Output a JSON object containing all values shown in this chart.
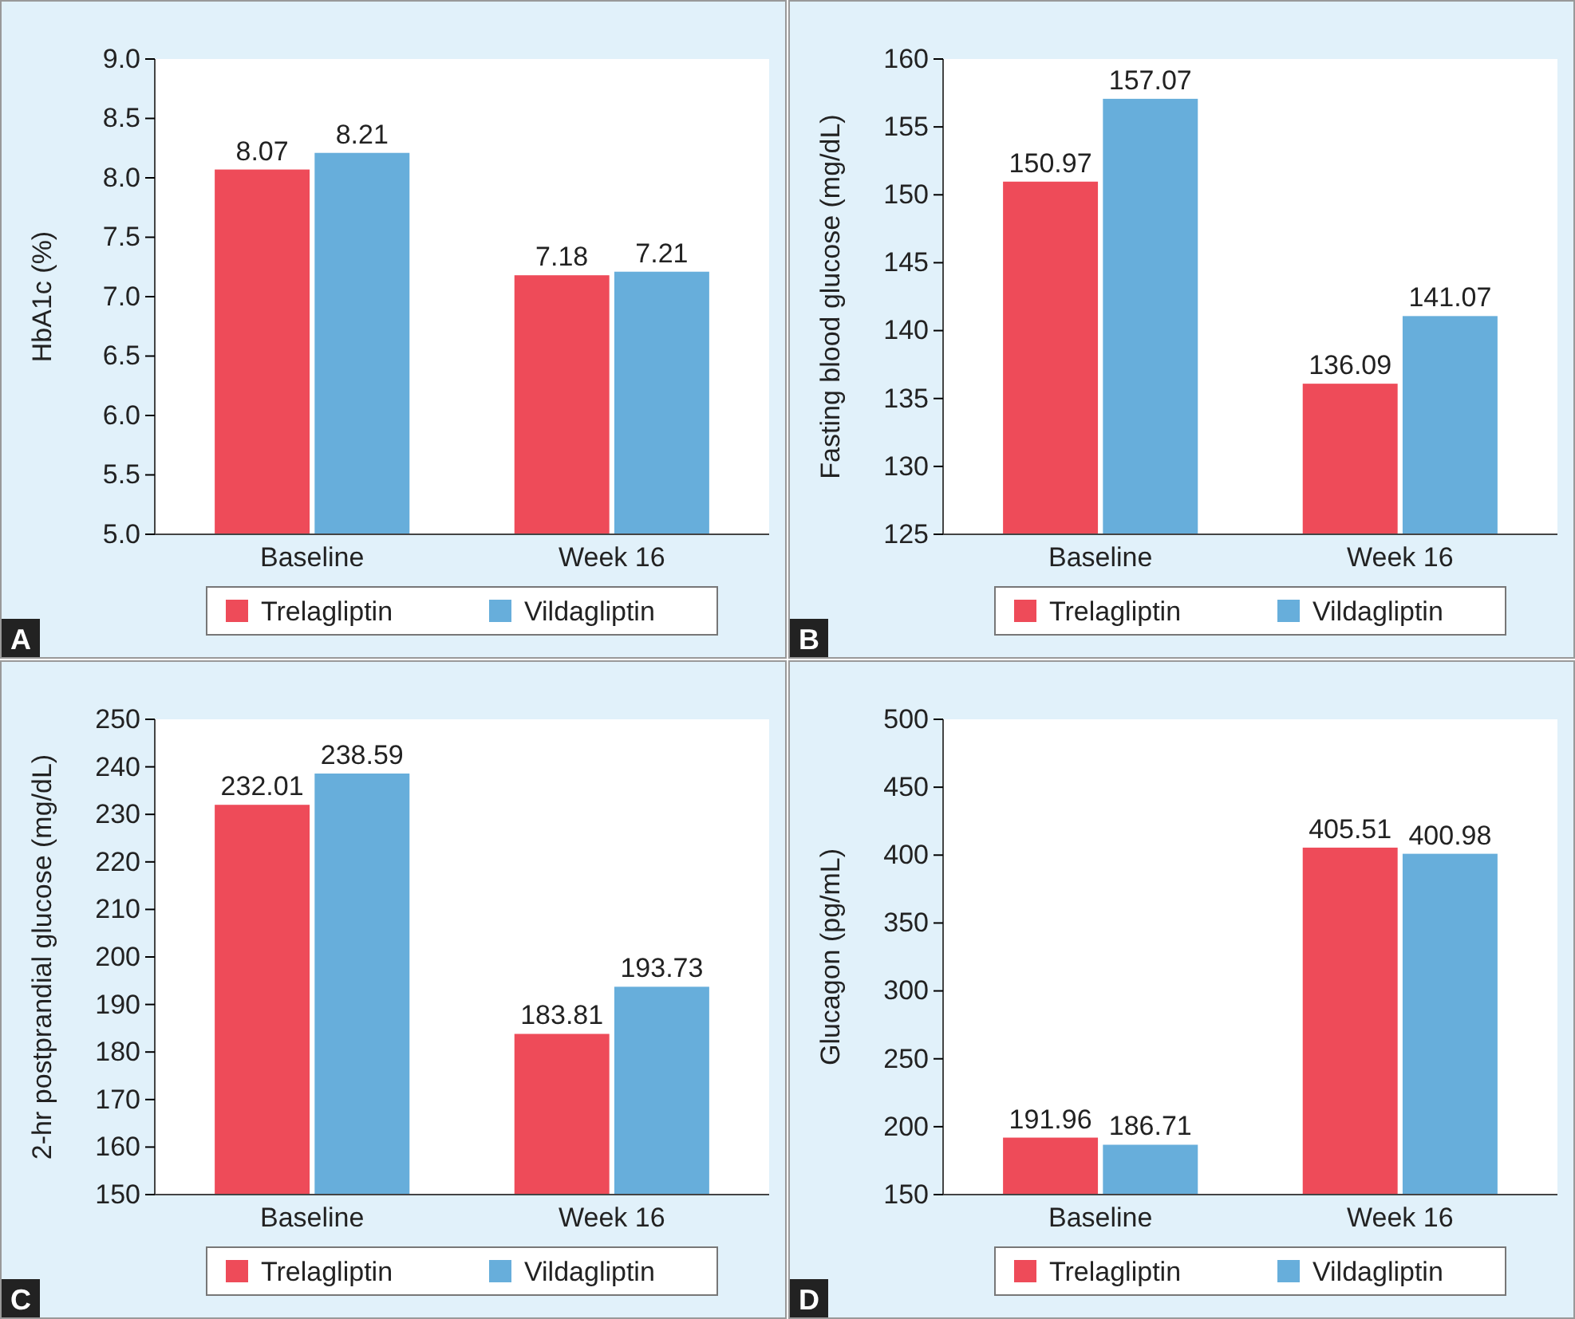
{
  "chart_data": [
    {
      "type": "bar",
      "ylabel": "HbA1c (%)",
      "categories": [
        "Baseline",
        "Week 16"
      ],
      "series": [
        {
          "name": "Trelagliptin",
          "color": "#ee4b59",
          "values": [
            8.07,
            7.18
          ]
        },
        {
          "name": "Vildagliptin",
          "color": "#67aedb",
          "values": [
            8.21,
            7.21
          ]
        }
      ],
      "ylim": [
        5,
        9
      ],
      "yticks": [
        {
          "value": 5,
          "label": "5.0"
        },
        5.5,
        {
          "value": 6,
          "label": "6.0"
        },
        6.5,
        {
          "value": 7,
          "label": "7.0"
        },
        7.5,
        {
          "value": 8,
          "label": "8.0"
        },
        8.5,
        {
          "value": 9,
          "label": "9.0"
        }
      ],
      "data_labels": true,
      "legend": "bottom",
      "annotations": [
        "A"
      ]
    },
    {
      "type": "bar",
      "ylabel": "Fasting blood glucose (mg/dL)",
      "categories": [
        "Baseline",
        "Week 16"
      ],
      "series": [
        {
          "name": "Trelagliptin",
          "color": "#ee4b59",
          "values": [
            150.97,
            136.09
          ]
        },
        {
          "name": "Vildagliptin",
          "color": "#67aedb",
          "values": [
            157.07,
            141.07
          ]
        }
      ],
      "ylim": [
        125,
        160
      ],
      "yticks": [
        125,
        130,
        135,
        140,
        145,
        150,
        155,
        160
      ],
      "data_labels": true,
      "legend": "bottom",
      "annotations": [
        "B"
      ]
    },
    {
      "type": "bar",
      "ylabel": "2-hr postprandial glucose (mg/dL)",
      "categories": [
        "Baseline",
        "Week 16"
      ],
      "series": [
        {
          "name": "Trelagliptin",
          "color": "#ee4b59",
          "values": [
            232.01,
            183.81
          ]
        },
        {
          "name": "Vildagliptin",
          "color": "#67aedb",
          "values": [
            238.59,
            193.73
          ]
        }
      ],
      "ylim": [
        150,
        250
      ],
      "yticks": [
        150,
        160,
        170,
        180,
        190,
        200,
        210,
        220,
        230,
        240,
        250
      ],
      "data_labels": true,
      "legend": "bottom",
      "annotations": [
        "C"
      ]
    },
    {
      "type": "bar",
      "ylabel": "Glucagon (pg/mL)",
      "categories": [
        "Baseline",
        "Week 16"
      ],
      "series": [
        {
          "name": "Trelagliptin",
          "color": "#ee4b59",
          "values": [
            191.96,
            405.51
          ]
        },
        {
          "name": "Vildagliptin",
          "color": "#67aedb",
          "values": [
            186.71,
            400.98
          ]
        }
      ],
      "ylim": [
        150,
        500
      ],
      "yticks": [
        150,
        200,
        250,
        300,
        350,
        400,
        450,
        500
      ],
      "data_labels": true,
      "legend": "bottom",
      "annotations": [
        "D"
      ]
    }
  ]
}
